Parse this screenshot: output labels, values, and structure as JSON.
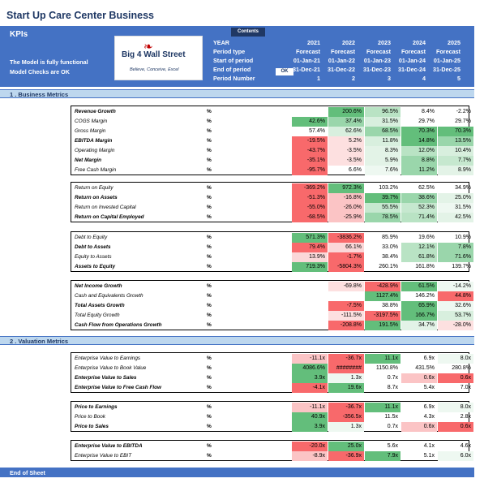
{
  "title": "Start Up Care Center Business",
  "kpis": "KPIs",
  "notes": [
    "The Model is fully functional",
    "Model Checks are OK"
  ],
  "logo": {
    "text": "Big 4 Wall Street",
    "sub": "Believe, Conceive, Excel"
  },
  "contents_label": "Contents",
  "ok_label": "OK",
  "header_labels": [
    "YEAR",
    "Period type",
    "Start of period",
    "End of period",
    "Period Number"
  ],
  "years": [
    {
      "year": "2021",
      "type": "Forecast",
      "start": "01-Jan-21",
      "end": "31-Dec-21",
      "num": "1"
    },
    {
      "year": "2022",
      "type": "Forecast",
      "start": "01-Jan-22",
      "end": "31-Dec-22",
      "num": "2"
    },
    {
      "year": "2023",
      "type": "Forecast",
      "start": "01-Jan-23",
      "end": "31-Dec-23",
      "num": "3"
    },
    {
      "year": "2024",
      "type": "Forecast",
      "start": "01-Jan-24",
      "end": "31-Dec-24",
      "num": "4"
    },
    {
      "year": "2025",
      "type": "Forecast",
      "start": "01-Jan-25",
      "end": "31-Dec-25",
      "num": "5"
    }
  ],
  "sections": {
    "business": "1 . Business Metrics",
    "valuation": "2 . Valuation Metrics"
  },
  "unit": "%",
  "colors": {
    "header": "#4472c4",
    "green_strong": "#63be7b",
    "green_light": "#c6efce",
    "red_strong": "#f8696b",
    "red_light": "#fcd5d5"
  },
  "groups": [
    {
      "rows": [
        {
          "label": "Revenue Growth",
          "bold": true,
          "values": [
            "",
            "200.6%",
            "96.5%",
            "8.4%",
            "-2.2%"
          ],
          "colors": [
            "",
            "#63be7b",
            "#b9e3c4",
            "",
            ""
          ]
        },
        {
          "label": "COGS Margin",
          "bold": false,
          "values": [
            "42.6%",
            "37.4%",
            "31.5%",
            "29.7%",
            "29.7%"
          ],
          "colors": [
            "#63be7b",
            "#9ad6ab",
            "#d8efde",
            "",
            ""
          ]
        },
        {
          "label": "Gross Margin",
          "bold": false,
          "values": [
            "57.4%",
            "62.6%",
            "68.5%",
            "70.3%",
            "70.3%"
          ],
          "colors": [
            "",
            "#d8efde",
            "#9ad6ab",
            "#63be7b",
            "#63be7b"
          ]
        },
        {
          "label": "EBITDA Margin",
          "bold": true,
          "values": [
            "-19.5%",
            "5.2%",
            "11.8%",
            "14.8%",
            "13.5%"
          ],
          "colors": [
            "#f8696b",
            "#fde0e0",
            "#d8efde",
            "#63be7b",
            "#9ad6ab"
          ]
        },
        {
          "label": "Operating Margin",
          "bold": false,
          "values": [
            "-43.7%",
            "-3.5%",
            "8.3%",
            "12.0%",
            "10.4%"
          ],
          "colors": [
            "#f8696b",
            "#fde0e0",
            "#e3f3e7",
            "#b9e3c4",
            "#d8efde"
          ]
        },
        {
          "label": "Net Margin",
          "bold": true,
          "values": [
            "-35.1%",
            "-3.5%",
            "5.9%",
            "8.8%",
            "7.7%"
          ],
          "colors": [
            "#f8696b",
            "#fde0e0",
            "#e3f3e7",
            "#9ad6ab",
            "#c6e8cf"
          ]
        },
        {
          "label": "Free Cash Margin",
          "bold": false,
          "values": [
            "-95.7%",
            "6.6%",
            "7.6%",
            "11.2%",
            "8.9%"
          ],
          "colors": [
            "#f8696b",
            "",
            "#eef8f1",
            "#9ad6ab",
            "#e3f3e7"
          ]
        }
      ]
    },
    {
      "rows": [
        {
          "label": "Return on Equity",
          "bold": false,
          "values": [
            "-369.2%",
            "972.3%",
            "103.2%",
            "62.5%",
            "34.9%"
          ],
          "colors": [
            "#f8696b",
            "#63be7b",
            "",
            "",
            ""
          ]
        },
        {
          "label": "Return on Assets",
          "bold": true,
          "values": [
            "-51.3%",
            "-16.8%",
            "39.7%",
            "38.6%",
            "25.0%"
          ],
          "colors": [
            "#f8696b",
            "#fbc4c5",
            "#63be7b",
            "#9ad6ab",
            "#e3f3e7"
          ]
        },
        {
          "label": "Return on Invested Capital",
          "bold": false,
          "values": [
            "-55.0%",
            "-26.0%",
            "55.5%",
            "52.3%",
            "31.5%"
          ],
          "colors": [
            "#f8696b",
            "#fbc4c5",
            "#c6e8cf",
            "#c6e8cf",
            "#eef8f1"
          ]
        },
        {
          "label": "Return on Capital Employed",
          "bold": true,
          "values": [
            "-68.5%",
            "-25.9%",
            "78.5%",
            "71.4%",
            "42.5%"
          ],
          "colors": [
            "#f8696b",
            "#fbc4c5",
            "#9ad6ab",
            "#b9e3c4",
            "#e3f3e7"
          ]
        }
      ]
    },
    {
      "rows": [
        {
          "label": "Debt to Equity",
          "bold": false,
          "values": [
            "571.3%",
            "-3836.2%",
            "85.9%",
            "19.6%",
            "10.9%"
          ],
          "colors": [
            "#63be7b",
            "#f8696b",
            "",
            "",
            ""
          ]
        },
        {
          "label": "Debt to Assets",
          "bold": true,
          "values": [
            "79.4%",
            "66.1%",
            "33.0%",
            "12.1%",
            "7.8%"
          ],
          "colors": [
            "#f8696b",
            "#fbd7d8",
            "",
            "#b9e3c4",
            "#9ad6ab"
          ]
        },
        {
          "label": "Equity to Assets",
          "bold": false,
          "values": [
            "13.9%",
            "-1.7%",
            "38.4%",
            "61.8%",
            "71.6%"
          ],
          "colors": [
            "#fbd7d8",
            "#f8696b",
            "",
            "#b9e3c4",
            "#9ad6ab"
          ]
        },
        {
          "label": "Assets to Equity",
          "bold": true,
          "values": [
            "719.3%",
            "-5804.3%",
            "260.1%",
            "161.8%",
            "139.7%"
          ],
          "colors": [
            "#63be7b",
            "#f8696b",
            "",
            "",
            ""
          ]
        }
      ]
    },
    {
      "rows": [
        {
          "label": "Net Income Growth",
          "bold": true,
          "values": [
            "",
            "-69.8%",
            "-428.9%",
            "61.5%",
            "-14.2%"
          ],
          "colors": [
            "",
            "#fde0e0",
            "#f8696b",
            "#63be7b",
            "#eef8f1"
          ]
        },
        {
          "label": "Cash and Equivalents Growth",
          "bold": false,
          "values": [
            "",
            "",
            "1127.4%",
            "146.2%",
            "44.8%"
          ],
          "colors": [
            "",
            "",
            "#63be7b",
            "",
            "#f8696b"
          ]
        },
        {
          "label": "Total Assets Growth",
          "bold": true,
          "values": [
            "",
            "-7.5%",
            "38.8%",
            "65.9%",
            "32.6%"
          ],
          "colors": [
            "",
            "#f8696b",
            "",
            "#63be7b",
            "#eef8f1"
          ]
        },
        {
          "label": "Total Equity Growth",
          "bold": false,
          "values": [
            "",
            "-111.5%",
            "-3197.5%",
            "166.7%",
            "53.7%"
          ],
          "colors": [
            "",
            "#fde0e0",
            "#f8696b",
            "#63be7b",
            "#d8efde"
          ]
        },
        {
          "label": "Cash Flow from Operations Growth",
          "bold": true,
          "values": [
            "",
            "-208.8%",
            "191.5%",
            "34.7%",
            "-28.0%"
          ],
          "colors": [
            "",
            "#f8696b",
            "#63be7b",
            "#e3f3e7",
            "#fde0e0"
          ]
        }
      ]
    },
    {
      "rows": [
        {
          "label": "Enterprise Value to Earnings",
          "bold": false,
          "values": [
            "-11.1x",
            "-36.7x",
            "11.1x",
            "6.9x",
            "8.0x"
          ],
          "colors": [
            "#fbc4c5",
            "#f8696b",
            "#63be7b",
            "",
            "#eef8f1"
          ]
        },
        {
          "label": "Enterprise Value to Book Value",
          "bold": false,
          "values": [
            "4086.6%",
            "########",
            "1150.8%",
            "431.5%",
            "280.8%"
          ],
          "colors": [
            "#63be7b",
            "#f8696b",
            "",
            "",
            ""
          ]
        },
        {
          "label": "Enterprise Value to Sales",
          "bold": true,
          "values": [
            "3.9x",
            "1.3x",
            "0.7x",
            "0.6x",
            "0.6x"
          ],
          "colors": [
            "#63be7b",
            "#eef8f1",
            "",
            "#fbc4c5",
            "#f8696b"
          ]
        },
        {
          "label": "Enterprise Value to Free Cash Flow",
          "bold": true,
          "values": [
            "-4.1x",
            "19.6x",
            "8.7x",
            "5.4x",
            "7.0x"
          ],
          "colors": [
            "#f8696b",
            "#63be7b",
            "",
            "",
            ""
          ]
        }
      ]
    },
    {
      "rows": [
        {
          "label": "Price to Earnings",
          "bold": true,
          "values": [
            "-11.1x",
            "-36.7x",
            "11.1x",
            "6.9x",
            "8.0x"
          ],
          "colors": [
            "#fbc4c5",
            "#f8696b",
            "#63be7b",
            "",
            "#eef8f1"
          ]
        },
        {
          "label": "Price to Book",
          "bold": false,
          "values": [
            "40.9x",
            "-356.5x",
            "11.5x",
            "4.3x",
            "2.8x"
          ],
          "colors": [
            "#63be7b",
            "#f8696b",
            "",
            "",
            ""
          ]
        },
        {
          "label": "Price to Sales",
          "bold": true,
          "values": [
            "3.9x",
            "1.3x",
            "0.7x",
            "0.6x",
            "0.6x"
          ],
          "colors": [
            "#63be7b",
            "#eef8f1",
            "",
            "#fbc4c5",
            "#f8696b"
          ]
        }
      ]
    },
    {
      "rows": [
        {
          "label": "Enterprise Value to EBITDA",
          "bold": true,
          "values": [
            "-20.0x",
            "25.0x",
            "5.6x",
            "4.1x",
            "4.6x"
          ],
          "colors": [
            "#f8696b",
            "#63be7b",
            "",
            "",
            ""
          ]
        },
        {
          "label": "Enterprise Value to EBIT",
          "bold": false,
          "values": [
            "-8.9x",
            "-36.9x",
            "7.9x",
            "5.1x",
            "6.0x"
          ],
          "colors": [
            "#fbc4c5",
            "#f8696b",
            "#63be7b",
            "",
            "#eef8f1"
          ]
        }
      ]
    }
  ],
  "end_label": "End of Sheet"
}
